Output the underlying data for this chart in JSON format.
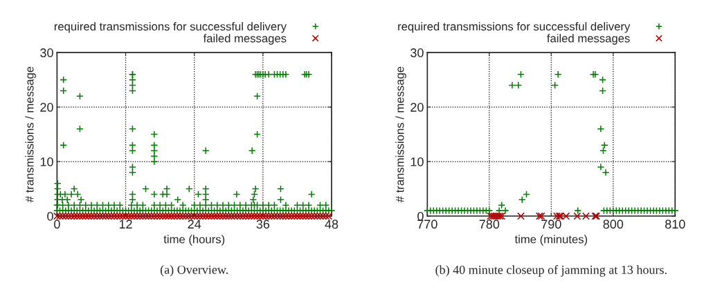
{
  "chart_data": [
    {
      "type": "scatter",
      "xlabel": "time (hours)",
      "ylabel": "# transmissions / message",
      "xlim": [
        0,
        48
      ],
      "ylim": [
        0,
        30
      ],
      "xticks": [
        0,
        12,
        24,
        36,
        48
      ],
      "yticks": [
        0,
        10,
        20,
        30
      ],
      "grid": true,
      "legend": "top",
      "annotations": [
        "(a) Overview."
      ],
      "series": [
        {
          "name": "required transmissions for successful delivery",
          "color": "#008000",
          "marker": "plus",
          "x": [
            0,
            0.5,
            1,
            1.5,
            2,
            2.5,
            3,
            3.5,
            4,
            4.5,
            5,
            5.5,
            6,
            6.5,
            7,
            7.5,
            8,
            8.5,
            9,
            9.5,
            10,
            10.5,
            11,
            11.5,
            12,
            12.5,
            13,
            13.5,
            14,
            14.5,
            15,
            15.5,
            16,
            16.5,
            17,
            17.5,
            18,
            18.5,
            19,
            19.5,
            20,
            20.5,
            21,
            21.5,
            22,
            22.5,
            23,
            23.5,
            24,
            24.5,
            25,
            25.5,
            26,
            26.5,
            27,
            27.5,
            28,
            28.5,
            29,
            29.5,
            30,
            30.5,
            31,
            31.5,
            32,
            32.5,
            33,
            33.5,
            34,
            34.5,
            35,
            35.5,
            36,
            36.5,
            37,
            37.5,
            38,
            38.5,
            39,
            39.5,
            40,
            40.5,
            41,
            41.5,
            42,
            42.5,
            43,
            43.5,
            44,
            44.5,
            45,
            45.5,
            46,
            46.5,
            47,
            47.5,
            48,
            0,
            1,
            2,
            3,
            4,
            5,
            6,
            7,
            8,
            9,
            10,
            11,
            13,
            14,
            15,
            17,
            18,
            19,
            20,
            22,
            24,
            25,
            26,
            27,
            28,
            29,
            30,
            31,
            32,
            33,
            34,
            35,
            36,
            37,
            38,
            40,
            42,
            43,
            44,
            46,
            47,
            0.1,
            0.1,
            0.1,
            0.1,
            0.1,
            0.6,
            0.9,
            1.4,
            1.8,
            2.5,
            3.0,
            3.6,
            4.2,
            1.13,
            1.13,
            1.13,
            4.0,
            4.0,
            13.2,
            13.2,
            13.2,
            13.2,
            13.2,
            13.2,
            13.2,
            13.2,
            13.2,
            13.2,
            13.2,
            13.2,
            17.0,
            17.0,
            17.0,
            17.0,
            17.0,
            17.0,
            15.5,
            18.5,
            19.2,
            19.2,
            21.1,
            23.1,
            24.7,
            26.0,
            26.0,
            26.0,
            26.0,
            31.4,
            34.1,
            34.3,
            34.5,
            34.7,
            34.5,
            35.0,
            35.0,
            34.7,
            35.0,
            35.3,
            35.6,
            36.0,
            36.4,
            37.0,
            38.0,
            38.5,
            39.0,
            39.5,
            40.0,
            43.3,
            43.6,
            44.0,
            39.1,
            39.1,
            44.5
          ],
          "values": [
            1,
            1,
            1,
            1,
            1,
            1,
            1,
            1,
            1,
            1,
            1,
            1,
            1,
            1,
            1,
            1,
            1,
            1,
            1,
            1,
            1,
            1,
            1,
            1,
            1,
            1,
            1,
            1,
            1,
            1,
            1,
            1,
            1,
            1,
            1,
            1,
            1,
            1,
            1,
            1,
            1,
            1,
            1,
            1,
            1,
            1,
            1,
            1,
            1,
            1,
            1,
            1,
            1,
            1,
            1,
            1,
            1,
            1,
            1,
            1,
            1,
            1,
            1,
            1,
            1,
            1,
            1,
            1,
            1,
            1,
            1,
            1,
            1,
            1,
            1,
            1,
            1,
            1,
            1,
            1,
            1,
            1,
            1,
            1,
            1,
            1,
            1,
            1,
            1,
            1,
            1,
            1,
            1,
            1,
            1,
            1,
            1,
            2,
            2,
            2,
            2,
            2,
            2,
            2,
            2,
            2,
            2,
            2,
            2,
            2,
            2,
            2,
            2,
            2,
            2,
            2,
            2,
            2,
            2,
            2,
            2,
            2,
            2,
            2,
            2,
            2,
            2,
            2,
            2,
            2,
            2,
            2,
            2,
            2,
            2,
            2,
            2,
            2,
            6,
            5,
            4,
            3,
            2,
            4,
            3,
            4,
            3,
            4,
            5,
            4,
            3,
            25,
            23,
            13,
            22,
            16,
            26,
            26,
            25,
            24,
            23,
            16,
            13,
            12,
            9,
            8,
            4,
            3,
            15,
            13,
            12,
            11,
            10,
            4,
            5,
            4,
            5,
            4,
            3,
            5,
            4,
            5,
            4,
            3,
            12,
            4,
            12,
            3,
            4,
            5,
            2,
            22,
            15,
            26,
            26,
            26,
            26,
            26,
            26,
            26,
            26,
            26,
            26,
            26,
            26,
            26,
            26,
            26,
            5,
            3,
            4
          ]
        },
        {
          "name": "failed messages",
          "color": "#b00000",
          "marker": "cross",
          "x": [
            0,
            0.5,
            1,
            1.5,
            2,
            2.5,
            3,
            3.5,
            4,
            4.5,
            5,
            5.5,
            6,
            6.5,
            7,
            7.5,
            8,
            8.5,
            9,
            9.5,
            10,
            10.5,
            11,
            11.5,
            12,
            12.5,
            13,
            13.5,
            14,
            14.5,
            15,
            15.5,
            16,
            16.5,
            17,
            17.5,
            18,
            18.5,
            19,
            19.5,
            20,
            20.5,
            21,
            21.5,
            22,
            22.5,
            23,
            23.5,
            24,
            24.5,
            25,
            25.5,
            26,
            26.5,
            27,
            27.5,
            28,
            28.5,
            29,
            29.5,
            30,
            30.5,
            31,
            31.5,
            32,
            32.5,
            33,
            33.5,
            34,
            34.5,
            35,
            35.5,
            36,
            36.5,
            37,
            37.5,
            38,
            38.5,
            39,
            39.5,
            40,
            40.5,
            41,
            41.5,
            42,
            42.5,
            43,
            43.5,
            44,
            44.5,
            45,
            45.5,
            46,
            46.5,
            47,
            47.5
          ],
          "values": [
            0,
            0,
            0,
            0,
            0,
            0,
            0,
            0,
            0,
            0,
            0,
            0,
            0,
            0,
            0,
            0,
            0,
            0,
            0,
            0,
            0,
            0,
            0,
            0,
            0,
            0,
            0,
            0,
            0,
            0,
            0,
            0,
            0,
            0,
            0,
            0,
            0,
            0,
            0,
            0,
            0,
            0,
            0,
            0,
            0,
            0,
            0,
            0,
            0,
            0,
            0,
            0,
            0,
            0,
            0,
            0,
            0,
            0,
            0,
            0,
            0,
            0,
            0,
            0,
            0,
            0,
            0,
            0,
            0,
            0,
            0,
            0,
            0,
            0,
            0,
            0,
            0,
            0,
            0,
            0,
            0,
            0,
            0,
            0,
            0,
            0,
            0,
            0,
            0,
            0,
            0,
            0,
            0,
            0,
            0,
            0
          ]
        }
      ]
    },
    {
      "type": "scatter",
      "xlabel": "time (minutes)",
      "ylabel": "# transmissions / message",
      "xlim": [
        770,
        810
      ],
      "ylim": [
        0,
        30
      ],
      "xticks": [
        770,
        780,
        790,
        800,
        810
      ],
      "yticks": [
        0,
        10,
        20,
        30
      ],
      "grid": true,
      "legend": "top",
      "annotations": [
        "(b) 40 minute closeup of jamming at 13 hours."
      ],
      "series": [
        {
          "name": "required transmissions for successful delivery",
          "color": "#008000",
          "marker": "plus",
          "x": [
            770,
            770.5,
            771,
            771.5,
            772,
            772.5,
            773,
            773.5,
            774,
            774.5,
            775,
            775.5,
            776,
            776.5,
            777,
            777.5,
            778,
            778.5,
            779,
            779.5,
            780,
            781.6,
            782,
            782.6,
            783.7,
            784.7,
            785.1,
            785.3,
            786,
            790.6,
            791.1,
            794.3,
            796.8,
            797.1,
            798.3,
            798.3,
            798,
            798.6,
            798.4,
            798,
            798.8,
            798.5,
            799,
            799.5,
            800,
            800.5,
            801,
            801.5,
            802,
            802.5,
            803,
            803.5,
            804,
            804.5,
            805,
            805.5,
            806,
            806.5,
            807,
            807.5,
            808,
            808.5,
            809,
            809.5,
            810
          ],
          "values": [
            1,
            1,
            1,
            1,
            1,
            1,
            1,
            1,
            1,
            1,
            1,
            1,
            1,
            1,
            1,
            1,
            1,
            1,
            1,
            1,
            1,
            1,
            2,
            1,
            24,
            24,
            26,
            3,
            4,
            24,
            26,
            1,
            26,
            26,
            25,
            23,
            16,
            13,
            12,
            9,
            8,
            1,
            1,
            1,
            1,
            1,
            1,
            1,
            1,
            1,
            1,
            1,
            1,
            1,
            1,
            1,
            1,
            1,
            1,
            1,
            1,
            1,
            1,
            1,
            1
          ]
        },
        {
          "name": "failed messages",
          "color": "#b00000",
          "marker": "cross",
          "x": [
            780.2,
            780.5,
            780.8,
            781.1,
            781.4,
            781.7,
            782,
            785.1,
            788.1,
            788.4,
            790.9,
            791.3,
            791.5,
            792.4,
            794.2,
            795.6,
            797.1,
            797.3
          ],
          "values": [
            0,
            0,
            0,
            0,
            0,
            0,
            0,
            0,
            0,
            0,
            0,
            0,
            0,
            0,
            0,
            0,
            0,
            0
          ]
        }
      ]
    }
  ]
}
